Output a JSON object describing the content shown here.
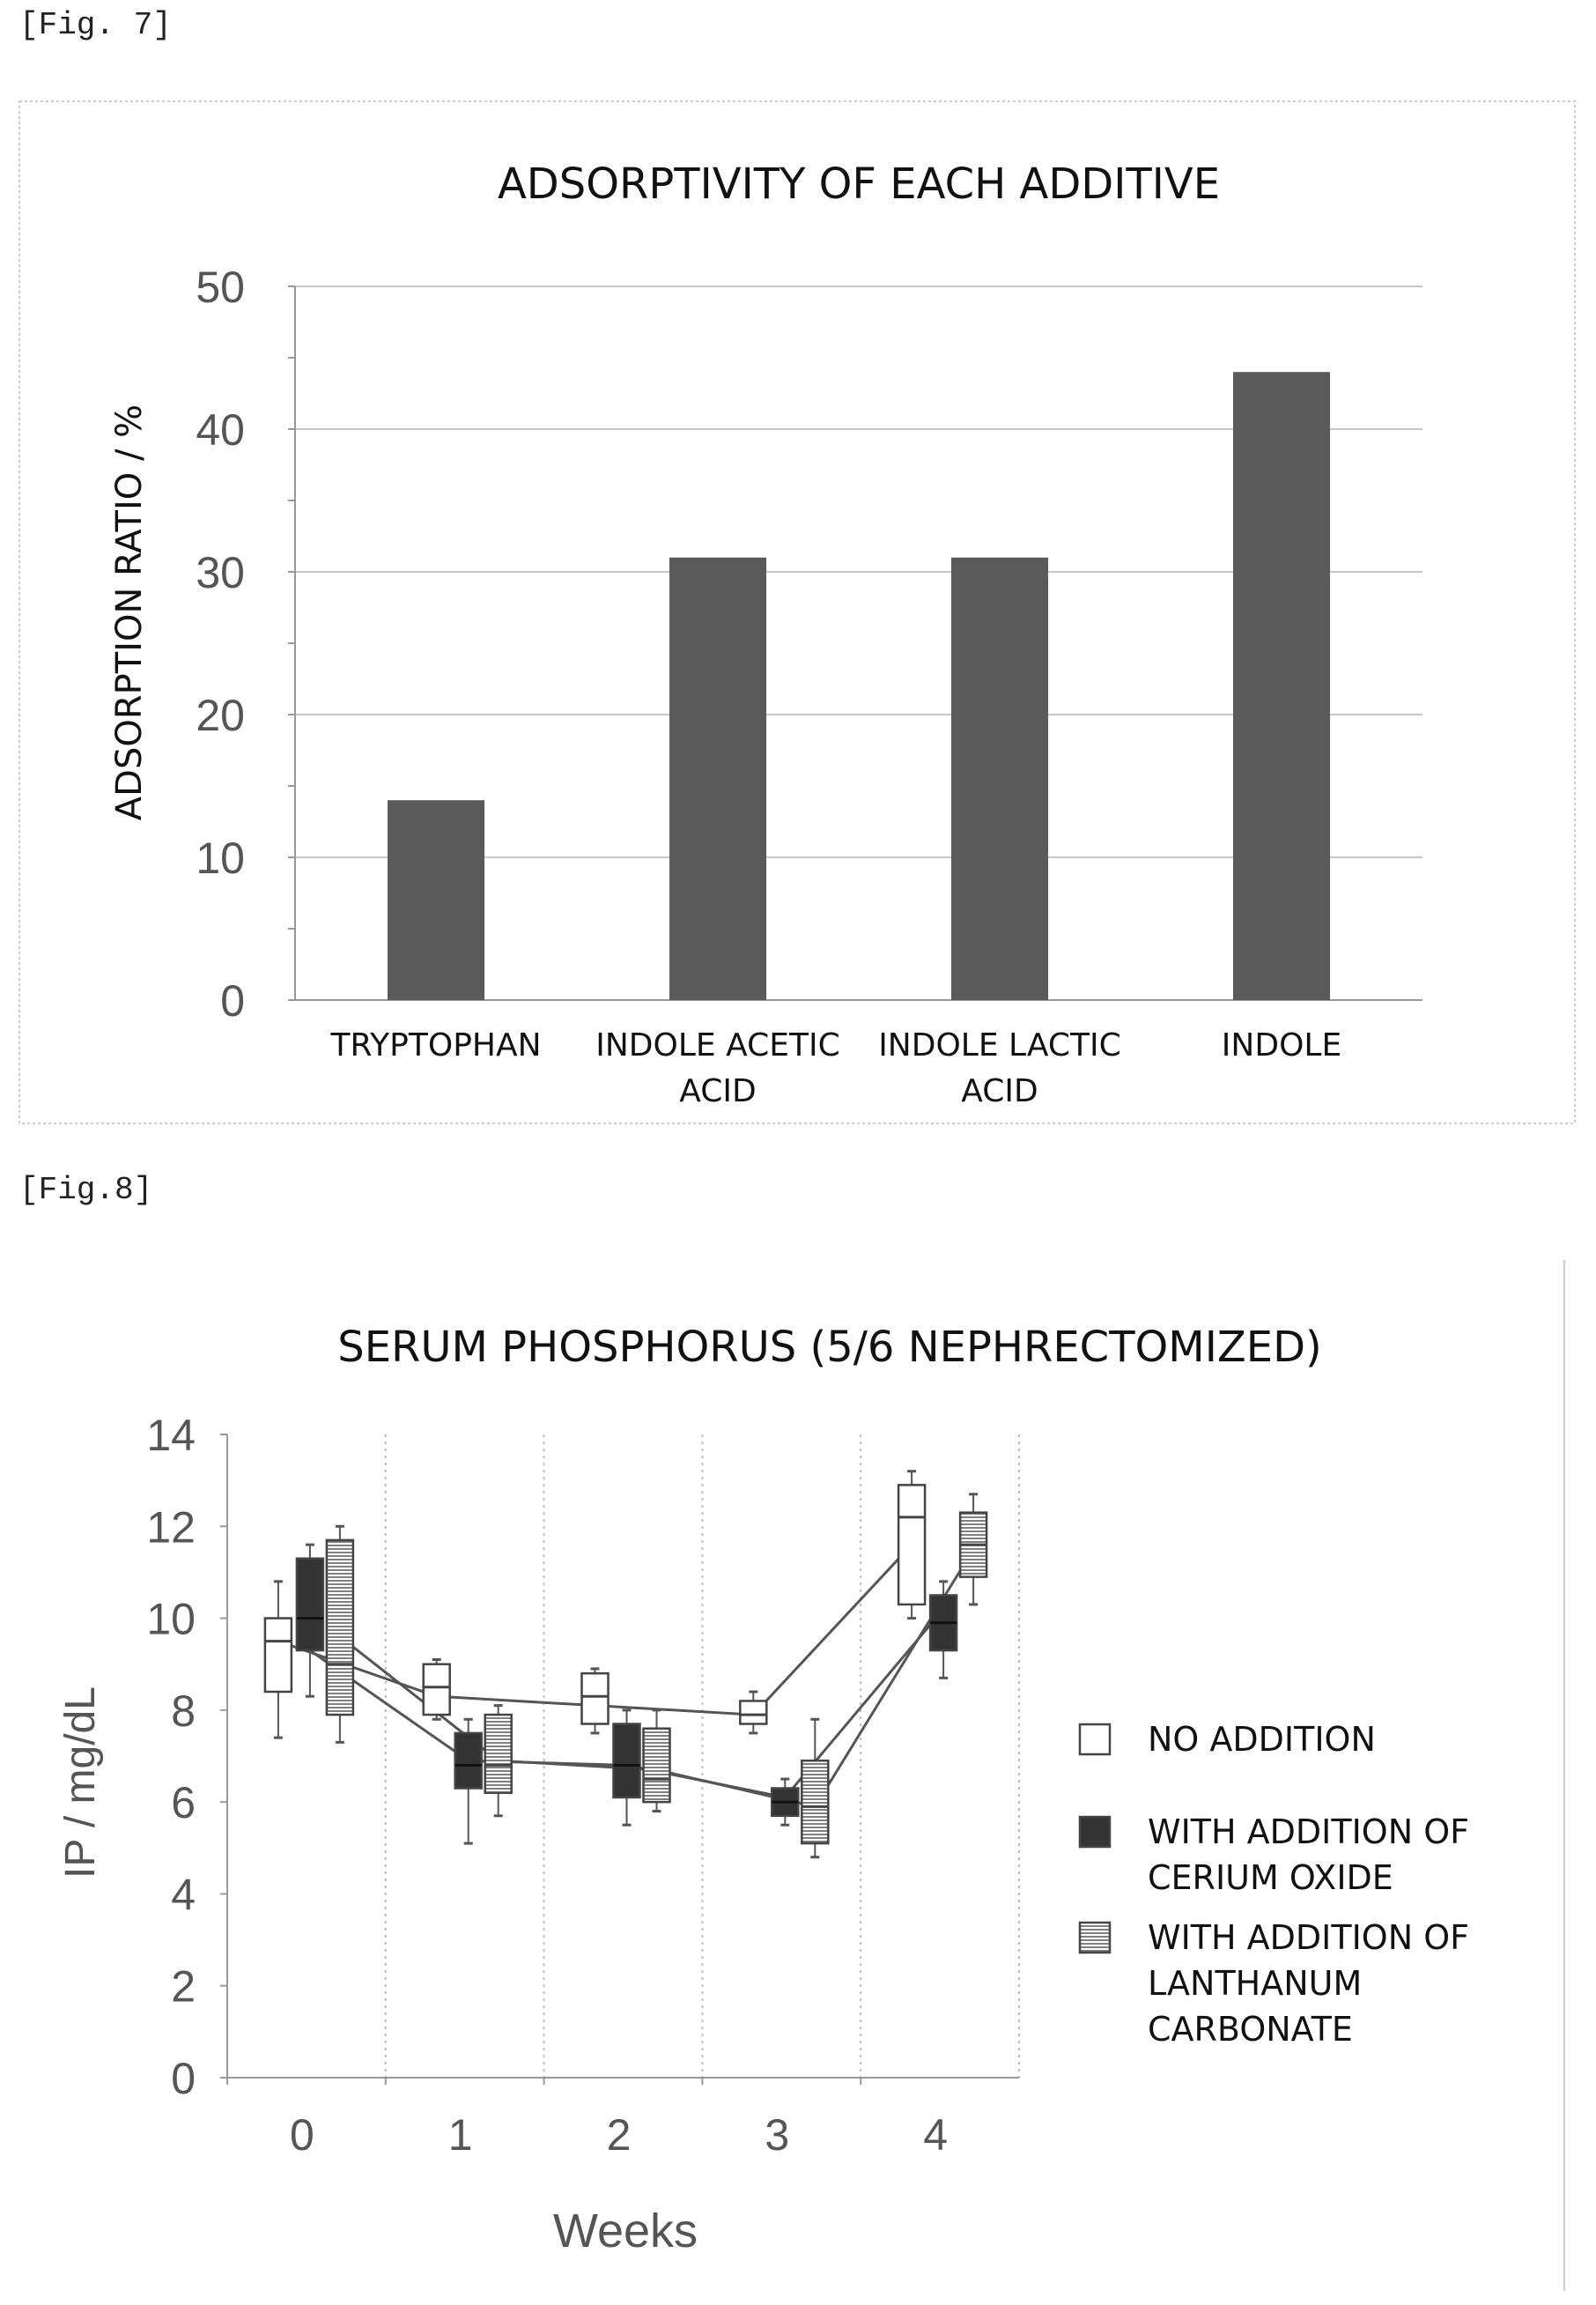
{
  "figure_labels": {
    "fig7": "[Fig. 7]",
    "fig8": "[Fig.8]"
  },
  "colors": {
    "bar": "#5a5a5a",
    "dark_box": "#333333",
    "light_box": "#ffffff",
    "axis": "#999999",
    "text": "#111111"
  },
  "chart_data": [
    {
      "type": "bar",
      "title": "ADSORPTIVITY OF EACH ADDITIVE",
      "ylabel": "ADSORPTION RATIO / %",
      "xlabel": "",
      "ylim": [
        0,
        50
      ],
      "y_ticks": [
        "0",
        "10",
        "20",
        "30",
        "40",
        "50"
      ],
      "categories": [
        [
          "TRYPTOPHAN"
        ],
        [
          "INDOLE ACETIC",
          "ACID"
        ],
        [
          "INDOLE LACTIC",
          "ACID"
        ],
        [
          "INDOLE"
        ]
      ],
      "values": [
        14,
        31,
        31,
        44
      ],
      "grid": true
    },
    {
      "type": "box",
      "title": "SERUM PHOSPHORUS (5/6 NEPHRECTOMIZED)",
      "ylabel": "IP / mg/dL",
      "xlabel": "Weeks",
      "ylim": [
        0,
        14
      ],
      "y_ticks": [
        "0",
        "2",
        "4",
        "6",
        "8",
        "10",
        "12",
        "14"
      ],
      "x_categories": [
        "0",
        "1",
        "2",
        "3",
        "4"
      ],
      "grid": true,
      "legend_position": "right",
      "series": [
        {
          "name": [
            "NO ADDITION"
          ],
          "pattern": "open",
          "boxes": [
            {
              "week": 0,
              "min": 7.4,
              "q1": 8.4,
              "median": 9.5,
              "q3": 10.0,
              "max": 10.8
            },
            {
              "week": 1,
              "min": 7.8,
              "q1": 7.9,
              "median": 8.5,
              "q3": 9.0,
              "max": 9.1
            },
            {
              "week": 2,
              "min": 7.5,
              "q1": 7.7,
              "median": 8.3,
              "q3": 8.8,
              "max": 8.9
            },
            {
              "week": 3,
              "min": 7.5,
              "q1": 7.7,
              "median": 7.9,
              "q3": 8.2,
              "max": 8.4
            },
            {
              "week": 4,
              "min": 10.0,
              "q1": 10.3,
              "median": 12.2,
              "q3": 12.9,
              "max": 13.2
            }
          ],
          "trend": [
            9.5,
            8.3,
            8.1,
            7.9,
            11.6
          ]
        },
        {
          "name": [
            "WITH ADDITION OF",
            "CERIUM OXIDE"
          ],
          "pattern": "solid",
          "boxes": [
            {
              "week": 0,
              "min": 8.3,
              "q1": 9.3,
              "median": 10.0,
              "q3": 11.3,
              "max": 11.6
            },
            {
              "week": 1,
              "min": 5.1,
              "q1": 6.3,
              "median": 6.8,
              "q3": 7.5,
              "max": 7.8
            },
            {
              "week": 2,
              "min": 5.5,
              "q1": 6.1,
              "median": 6.8,
              "q3": 7.7,
              "max": 8.0
            },
            {
              "week": 3,
              "min": 5.5,
              "q1": 5.7,
              "median": 6.0,
              "q3": 6.3,
              "max": 6.5
            },
            {
              "week": 4,
              "min": 8.7,
              "q1": 9.3,
              "median": 9.9,
              "q3": 10.5,
              "max": 10.8
            }
          ],
          "trend": [
            9.3,
            6.9,
            6.8,
            6.1,
            10.2
          ]
        },
        {
          "name": [
            "WITH ADDITION OF",
            "LANTHANUM",
            "CARBONATE"
          ],
          "pattern": "hatched",
          "boxes": [
            {
              "week": 0,
              "min": 7.3,
              "q1": 7.9,
              "median": 9.0,
              "q3": 11.7,
              "max": 12.0
            },
            {
              "week": 1,
              "min": 5.7,
              "q1": 6.2,
              "median": 6.8,
              "q3": 7.9,
              "max": 8.1
            },
            {
              "week": 2,
              "min": 5.8,
              "q1": 6.0,
              "median": 6.5,
              "q3": 7.6,
              "max": 8.0
            },
            {
              "week": 3,
              "min": 4.8,
              "q1": 5.1,
              "median": 5.9,
              "q3": 6.9,
              "max": 7.8
            },
            {
              "week": 4,
              "min": 10.3,
              "q1": 10.9,
              "median": 11.6,
              "q3": 12.3,
              "max": 12.7
            }
          ],
          "trend": [
            9.6,
            6.9,
            6.7,
            5.9,
            11.5
          ]
        }
      ]
    }
  ]
}
